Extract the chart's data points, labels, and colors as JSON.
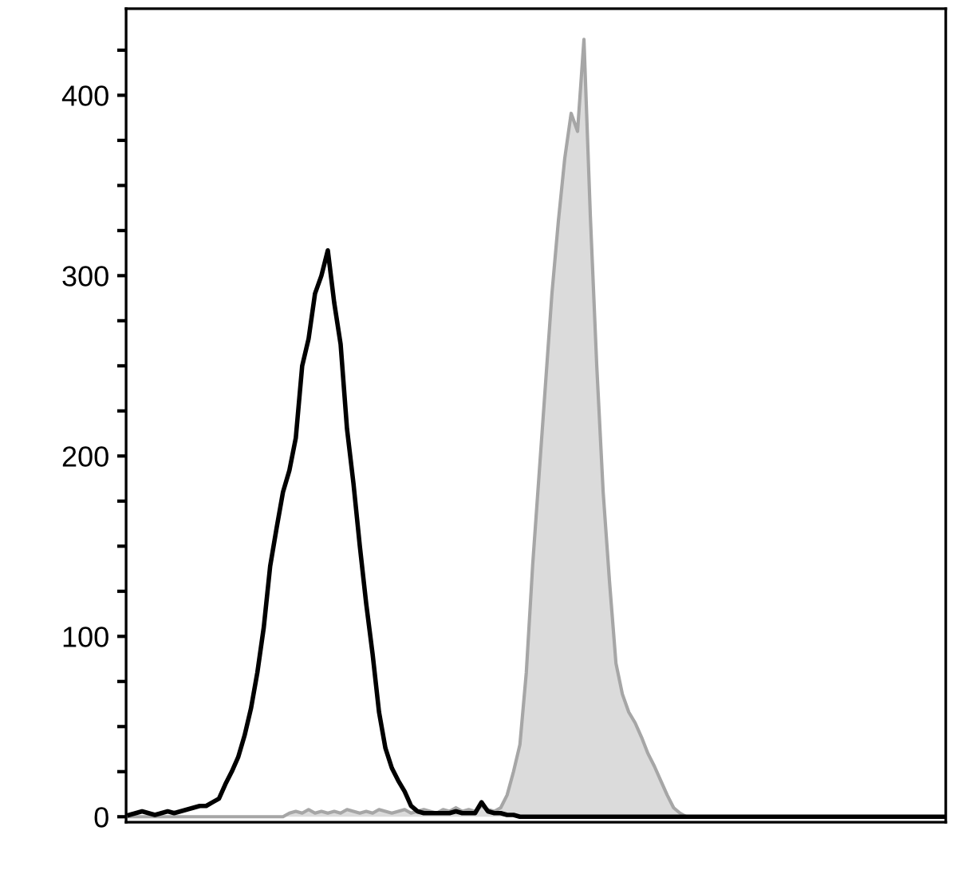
{
  "chart_data": {
    "type": "line",
    "categories": [
      null,
      null,
      null,
      null,
      null,
      null,
      null,
      null,
      null,
      null,
      null,
      null,
      null,
      null,
      null,
      null,
      null,
      null,
      null,
      null,
      null,
      null,
      null,
      null,
      null,
      null,
      null,
      null,
      null,
      null,
      null,
      null,
      null,
      null,
      null,
      null,
      null,
      null,
      null,
      null,
      null,
      null,
      null,
      null,
      null,
      null,
      null,
      null,
      null,
      null,
      null,
      null,
      null,
      null,
      null,
      null,
      null,
      null,
      null,
      null,
      null,
      null,
      null,
      null,
      null,
      null,
      null,
      null,
      null,
      null,
      null,
      null,
      null,
      null,
      null,
      null,
      null,
      null,
      null,
      null,
      null,
      null,
      null,
      null,
      null,
      null,
      null,
      null,
      null,
      null,
      null,
      null,
      null,
      null,
      null,
      null,
      null,
      null,
      null,
      null,
      null,
      null,
      null,
      null,
      null,
      null,
      null,
      null,
      null,
      null,
      null,
      null,
      null,
      null,
      null,
      null,
      null,
      null,
      null,
      null,
      null,
      null,
      null,
      null,
      null,
      null,
      null,
      null
    ],
    "series": [
      {
        "type": "area",
        "color": "#a6a6a6",
        "values": [
          0,
          0,
          0,
          0,
          0,
          0,
          0,
          0,
          0,
          0,
          0,
          0,
          0,
          0,
          0,
          0,
          0,
          0,
          0,
          0,
          0,
          0,
          0,
          0,
          0,
          2,
          3,
          2,
          4,
          2,
          3,
          2,
          3,
          2,
          4,
          3,
          2,
          3,
          2,
          4,
          3,
          2,
          3,
          4,
          2,
          3,
          4,
          3,
          2,
          4,
          3,
          5,
          3,
          4,
          3,
          6,
          4,
          3,
          5,
          12,
          25,
          40,
          80,
          140,
          190,
          240,
          290,
          330,
          365,
          390,
          380,
          431,
          333,
          250,
          180,
          130,
          85,
          68,
          58,
          52,
          44,
          35,
          28,
          20,
          12,
          5,
          2,
          0,
          0,
          0,
          0,
          0,
          0,
          0,
          0,
          0,
          0,
          0,
          0,
          0,
          0,
          0,
          0,
          0,
          0,
          0,
          0,
          0,
          0,
          0,
          0,
          0,
          0,
          0,
          0,
          0,
          0,
          0,
          0,
          0,
          0,
          0,
          0,
          0,
          0,
          0,
          0,
          0
        ]
      },
      {
        "color": "#000000",
        "values": [
          1,
          2,
          3,
          2,
          1,
          2,
          3,
          2,
          3,
          4,
          5,
          6,
          6,
          8,
          10,
          18,
          25,
          33,
          45,
          60,
          80,
          105,
          139,
          160,
          180,
          192,
          210,
          250,
          265,
          290,
          300,
          314,
          285,
          262,
          215,
          185,
          150,
          118,
          90,
          58,
          38,
          27,
          20,
          14,
          6,
          3,
          2,
          2,
          2,
          2,
          2,
          3,
          2,
          2,
          2,
          8,
          3,
          2,
          2,
          1,
          1,
          0,
          0,
          0,
          0,
          0,
          0,
          0,
          0,
          0,
          0,
          0,
          0,
          0,
          0,
          0,
          0,
          0,
          0,
          0,
          0,
          0,
          0,
          0,
          0,
          0,
          0,
          0,
          0,
          0,
          0,
          0,
          0,
          0,
          0,
          0,
          0,
          0,
          0,
          0,
          0,
          0,
          0,
          0,
          0,
          0,
          0,
          0,
          0,
          0,
          0,
          0,
          0,
          0,
          0,
          0,
          0,
          0,
          0,
          0,
          0,
          0,
          0,
          0,
          0,
          0,
          0,
          0
        ]
      }
    ],
    "ylim": [
      -3,
      448
    ],
    "yticks": [
      0,
      {
        "value": 25,
        "label": null
      },
      {
        "value": 50,
        "label": null
      },
      {
        "value": 75,
        "label": null
      },
      100,
      {
        "value": 125,
        "label": null
      },
      {
        "value": 150,
        "label": null
      },
      {
        "value": 175,
        "label": null
      },
      200,
      {
        "value": 225,
        "label": null
      },
      {
        "value": 250,
        "label": null
      },
      {
        "value": 275,
        "label": null
      },
      300,
      {
        "value": 325,
        "label": null
      },
      {
        "value": 350,
        "label": null
      },
      {
        "value": 375,
        "label": null
      },
      400,
      {
        "value": 425,
        "label": null
      }
    ],
    "tick_labels": "y"
  }
}
